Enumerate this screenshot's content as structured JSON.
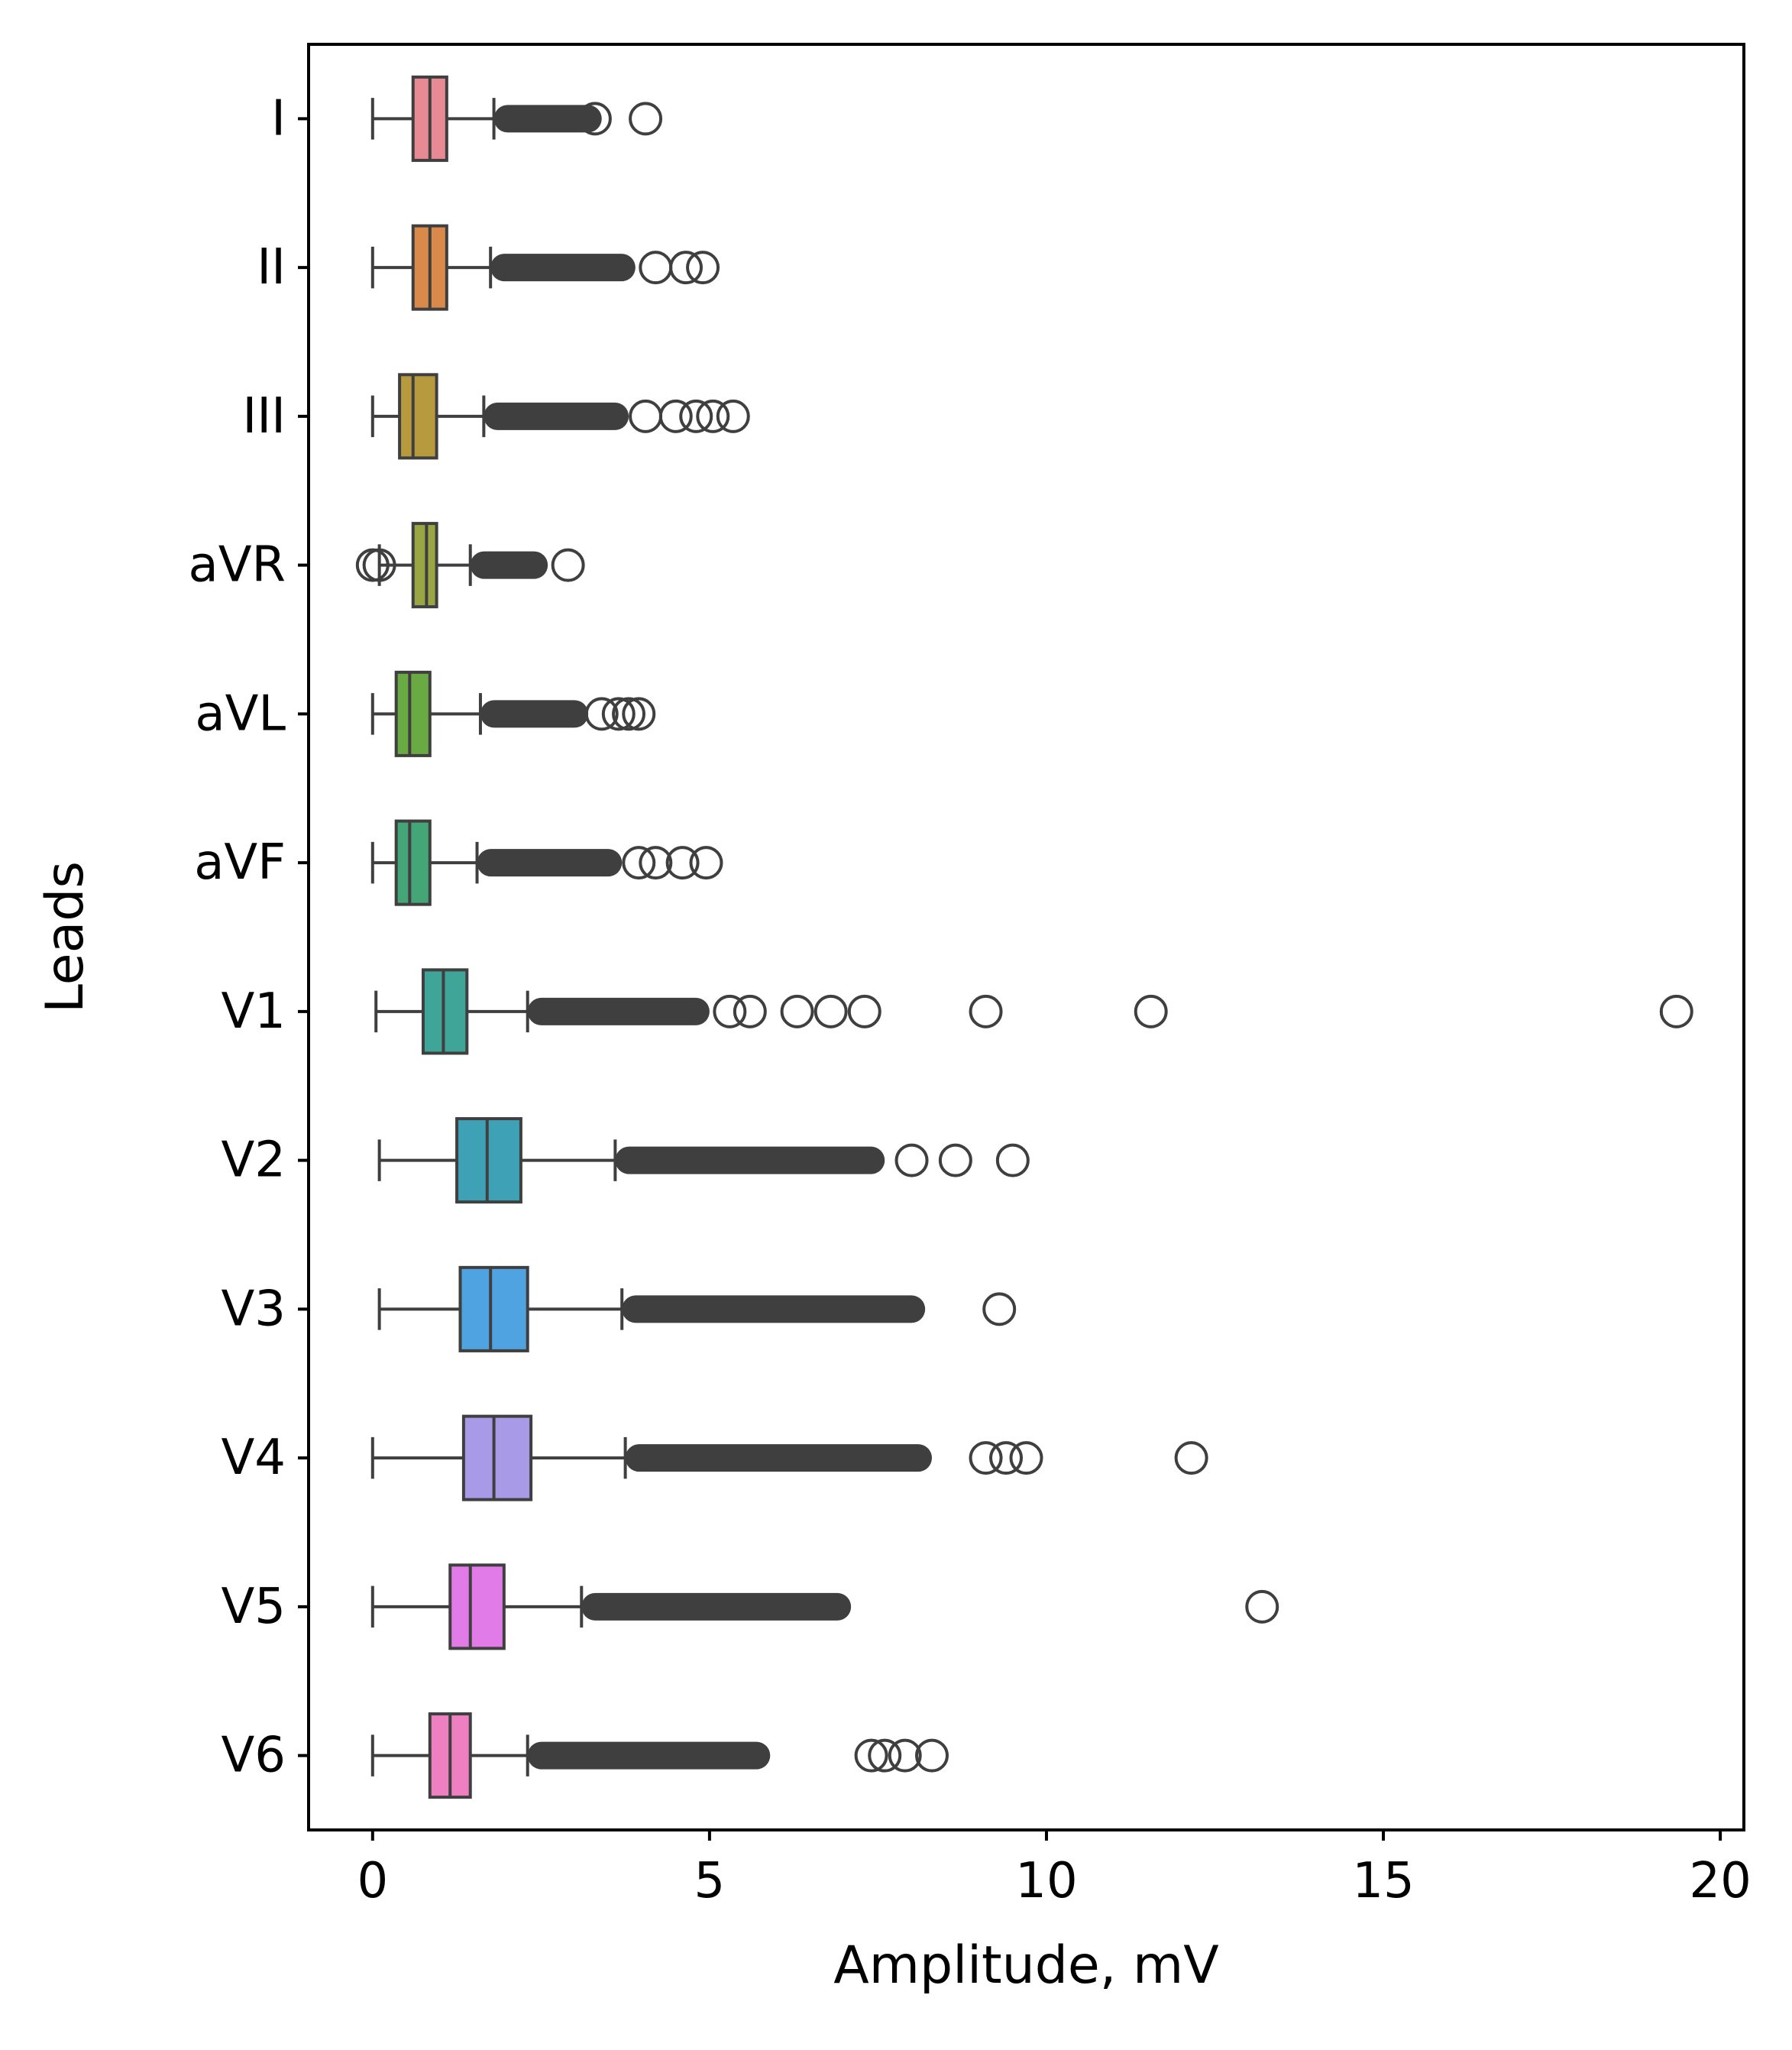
{
  "chart_data": {
    "type": "box",
    "orientation": "horizontal",
    "title": "",
    "xlabel": "Amplitude, mV",
    "ylabel": "Leads",
    "xlim": [
      -0.95,
      20.35
    ],
    "xticks": [
      0,
      5,
      10,
      15,
      20
    ],
    "grid": false,
    "legend": "none",
    "categories": [
      "I",
      "II",
      "III",
      "aVR",
      "aVL",
      "aVF",
      "V1",
      "V2",
      "V3",
      "V4",
      "V5",
      "V6"
    ],
    "boxes": [
      {
        "lead": "I",
        "color": "#e88a93",
        "whisker_low": 0.0,
        "q1": 0.6,
        "median": 0.85,
        "q3": 1.1,
        "whisker_high": 1.8,
        "flier_range": [
          1.8,
          3.4
        ],
        "outliers": [
          3.3,
          4.05
        ]
      },
      {
        "lead": "II",
        "color": "#d98a4a",
        "whisker_low": 0.0,
        "q1": 0.6,
        "median": 0.85,
        "q3": 1.1,
        "whisker_high": 1.75,
        "flier_range": [
          1.75,
          3.9
        ],
        "outliers": [
          4.2,
          4.65,
          4.9
        ]
      },
      {
        "lead": "III",
        "color": "#b89a3e",
        "whisker_low": 0.0,
        "q1": 0.4,
        "median": 0.6,
        "q3": 0.95,
        "whisker_high": 1.65,
        "flier_range": [
          1.65,
          3.8
        ],
        "outliers": [
          4.05,
          4.5,
          4.8,
          5.05,
          5.35
        ]
      },
      {
        "lead": "aVR",
        "color": "#9aa544",
        "whisker_low": 0.1,
        "q1": 0.6,
        "median": 0.8,
        "q3": 0.95,
        "whisker_high": 1.45,
        "flier_range": [
          1.45,
          2.6
        ],
        "outliers": [
          0.0,
          0.1,
          2.9
        ]
      },
      {
        "lead": "aVL",
        "color": "#6aaa43",
        "whisker_low": 0.0,
        "q1": 0.35,
        "median": 0.55,
        "q3": 0.85,
        "whisker_high": 1.6,
        "flier_range": [
          1.6,
          3.2
        ],
        "outliers": [
          3.4,
          3.65,
          3.8,
          3.95
        ]
      },
      {
        "lead": "aVF",
        "color": "#44a576",
        "whisker_low": 0.0,
        "q1": 0.35,
        "median": 0.55,
        "q3": 0.85,
        "whisker_high": 1.55,
        "flier_range": [
          1.55,
          3.7
        ],
        "outliers": [
          3.95,
          4.2,
          4.6,
          4.95
        ]
      },
      {
        "lead": "V1",
        "color": "#3fa598",
        "whisker_low": 0.05,
        "q1": 0.75,
        "median": 1.05,
        "q3": 1.4,
        "whisker_high": 2.3,
        "flier_range": [
          2.3,
          5.0
        ],
        "outliers": [
          5.3,
          5.6,
          6.3,
          6.8,
          7.3,
          9.1,
          11.55,
          19.35
        ]
      },
      {
        "lead": "V2",
        "color": "#3fa1b5",
        "whisker_low": 0.1,
        "q1": 1.25,
        "median": 1.7,
        "q3": 2.2,
        "whisker_high": 3.6,
        "flier_range": [
          3.6,
          7.6
        ],
        "outliers": [
          8.0,
          8.65,
          9.5
        ]
      },
      {
        "lead": "V3",
        "color": "#4ea3e0",
        "whisker_low": 0.1,
        "q1": 1.3,
        "median": 1.75,
        "q3": 2.3,
        "whisker_high": 3.7,
        "flier_range": [
          3.7,
          8.2
        ],
        "outliers": [
          9.3
        ]
      },
      {
        "lead": "V4",
        "color": "#a99ae8",
        "whisker_low": 0.0,
        "q1": 1.35,
        "median": 1.8,
        "q3": 2.35,
        "whisker_high": 3.75,
        "flier_range": [
          3.75,
          8.3
        ],
        "outliers": [
          9.1,
          9.4,
          9.7,
          12.15
        ]
      },
      {
        "lead": "V5",
        "color": "#e07be7",
        "whisker_low": 0.0,
        "q1": 1.15,
        "median": 1.45,
        "q3": 1.95,
        "whisker_high": 3.1,
        "flier_range": [
          3.1,
          7.1
        ],
        "outliers": [
          13.2
        ]
      },
      {
        "lead": "V6",
        "color": "#ee7fc0",
        "whisker_low": 0.0,
        "q1": 0.85,
        "median": 1.15,
        "q3": 1.45,
        "whisker_high": 2.3,
        "flier_range": [
          2.3,
          5.9
        ],
        "outliers": [
          7.4,
          7.6,
          7.9,
          8.3
        ]
      }
    ]
  }
}
